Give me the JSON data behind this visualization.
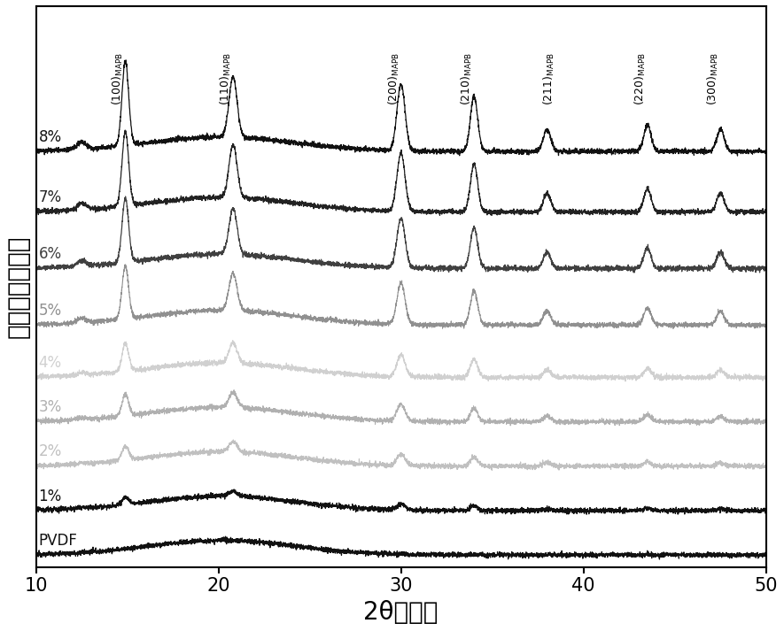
{
  "xlabel": "2θ（度）",
  "ylabel": "强度（归一化）",
  "xlim": [
    10,
    50
  ],
  "xmin": 10,
  "xmax": 50,
  "xticks": [
    10,
    20,
    30,
    40,
    50
  ],
  "labels": [
    "PVDF",
    "1%",
    "2%",
    "3%",
    "4%",
    "5%",
    "6%",
    "7%",
    "8%"
  ],
  "line_colors": [
    "#111111",
    "#111111",
    "#c0c0c0",
    "#b0b0b0",
    "#d0d0d0",
    "#909090",
    "#404040",
    "#222222",
    "#111111"
  ],
  "label_colors": [
    "#111111",
    "#111111",
    "#c0c0c0",
    "#b0b0b0",
    "#d0d0d0",
    "#909090",
    "#404040",
    "#222222",
    "#111111"
  ],
  "offsets": [
    0.0,
    0.55,
    1.1,
    1.65,
    2.2,
    2.85,
    3.55,
    4.25,
    5.0
  ],
  "peak_positions": [
    14.9,
    20.8,
    30.0,
    34.0,
    38.5,
    43.5,
    47.5
  ],
  "peak_labels": [
    "(100)",
    "(110)",
    "(200)",
    "(210)",
    "(211)",
    "(220)",
    "(300)"
  ],
  "peak_subscript": "MAPB",
  "annotation_fontsize": 9,
  "label_fontsize": 12,
  "axis_label_fontsize": 20,
  "tick_fontsize": 15,
  "noise_amplitude": 0.015,
  "background_color": "#ffffff"
}
